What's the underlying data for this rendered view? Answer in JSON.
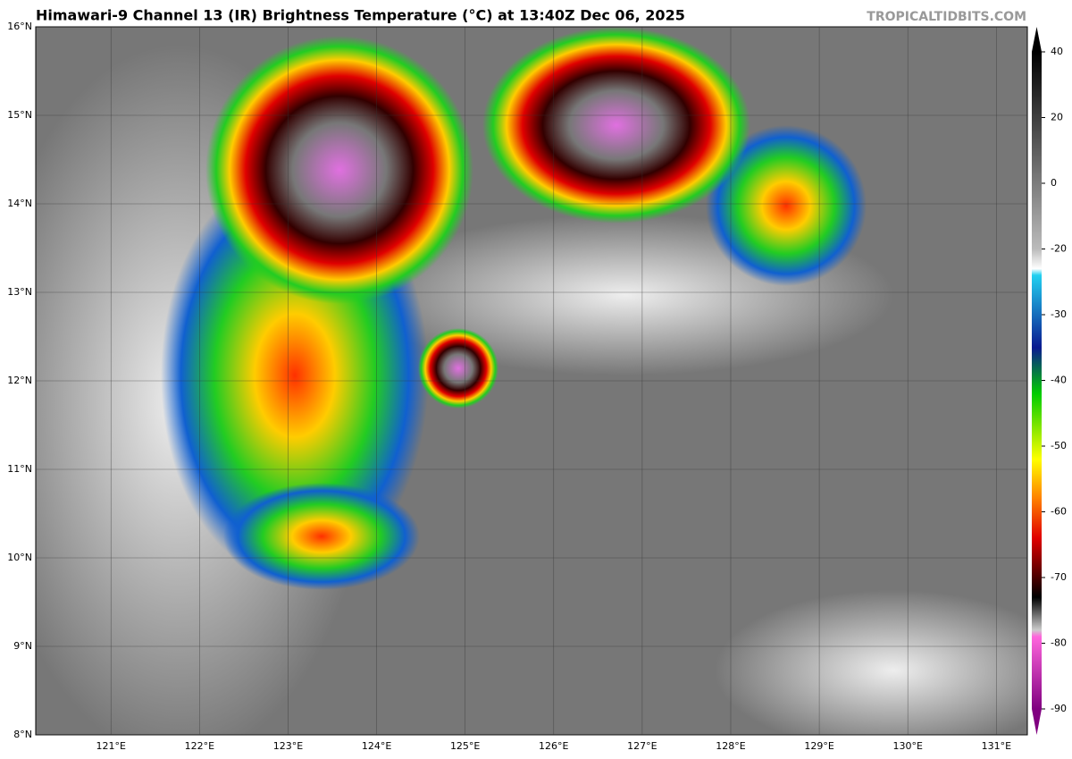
{
  "title": "Himawari-9 Channel 13 (IR) Brightness Temperature (°C) at 13:40Z Dec 06, 2025",
  "credit": "TROPICALTIDBITS.COM",
  "map": {
    "lon_range": [
      120.15,
      131.35
    ],
    "lat_range": [
      8,
      16
    ],
    "lat_ticks": [
      {
        "value": 16,
        "label": "16°N"
      },
      {
        "value": 15,
        "label": "15°N"
      },
      {
        "value": 14,
        "label": "14°N"
      },
      {
        "value": 13,
        "label": "13°N"
      },
      {
        "value": 12,
        "label": "12°N"
      },
      {
        "value": 11,
        "label": "11°N"
      },
      {
        "value": 10,
        "label": "10°N"
      },
      {
        "value": 9,
        "label": "9°N"
      },
      {
        "value": 8,
        "label": "8°N"
      }
    ],
    "lon_ticks": [
      {
        "value": 121,
        "label": "121°E"
      },
      {
        "value": 122,
        "label": "122°E"
      },
      {
        "value": 123,
        "label": "123°E"
      },
      {
        "value": 124,
        "label": "124°E"
      },
      {
        "value": 125,
        "label": "125°E"
      },
      {
        "value": 126,
        "label": "126°E"
      },
      {
        "value": 127,
        "label": "127°E"
      },
      {
        "value": 128,
        "label": "128°E"
      },
      {
        "value": 129,
        "label": "129°E"
      },
      {
        "value": 130,
        "label": "130°E"
      },
      {
        "value": 131,
        "label": "131°E"
      }
    ]
  },
  "colorbar": {
    "ticks": [
      40,
      20,
      0,
      -20,
      -30,
      -40,
      -50,
      -60,
      -70,
      -80,
      -90
    ]
  }
}
